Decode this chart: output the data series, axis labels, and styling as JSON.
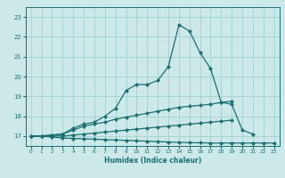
{
  "xlabel": "Humidex (Indice chaleur)",
  "background_color": "#cce8e8",
  "grid_color": "#99cccc",
  "line_color": "#1a7070",
  "x_values": [
    0,
    1,
    2,
    3,
    4,
    5,
    6,
    7,
    8,
    9,
    10,
    11,
    12,
    13,
    14,
    15,
    16,
    17,
    18,
    19,
    20,
    21,
    22,
    23
  ],
  "main_line": [
    17.0,
    17.0,
    17.05,
    17.1,
    17.4,
    17.6,
    17.7,
    18.0,
    18.4,
    19.3,
    19.6,
    19.6,
    19.8,
    20.5,
    22.6,
    22.3,
    21.2,
    20.4,
    18.7,
    18.6,
    17.3,
    17.1,
    null,
    null
  ],
  "line2": [
    17.0,
    17.0,
    17.05,
    17.1,
    17.3,
    17.5,
    17.6,
    17.7,
    17.85,
    17.95,
    18.05,
    18.15,
    18.25,
    18.35,
    18.45,
    18.5,
    18.55,
    18.6,
    18.7,
    18.75,
    null,
    null,
    null,
    null
  ],
  "line3": [
    17.0,
    17.0,
    17.0,
    17.0,
    17.05,
    17.1,
    17.15,
    17.2,
    17.25,
    17.3,
    17.35,
    17.4,
    17.45,
    17.5,
    17.55,
    17.6,
    17.65,
    17.7,
    17.75,
    17.8,
    null,
    null,
    null,
    null
  ],
  "line4": [
    17.0,
    17.0,
    16.95,
    16.9,
    16.88,
    16.86,
    16.84,
    16.82,
    16.8,
    16.78,
    16.76,
    16.74,
    16.72,
    16.7,
    16.68,
    16.67,
    16.66,
    16.65,
    16.65,
    16.65,
    16.65,
    16.65,
    16.65,
    16.65
  ],
  "ylim": [
    16.5,
    23.5
  ],
  "xlim": [
    -0.5,
    23.5
  ],
  "yticks": [
    17,
    18,
    19,
    20,
    21,
    22,
    23
  ],
  "xticks": [
    0,
    1,
    2,
    3,
    4,
    5,
    6,
    7,
    8,
    9,
    10,
    11,
    12,
    13,
    14,
    15,
    16,
    17,
    18,
    19,
    20,
    21,
    22,
    23
  ]
}
